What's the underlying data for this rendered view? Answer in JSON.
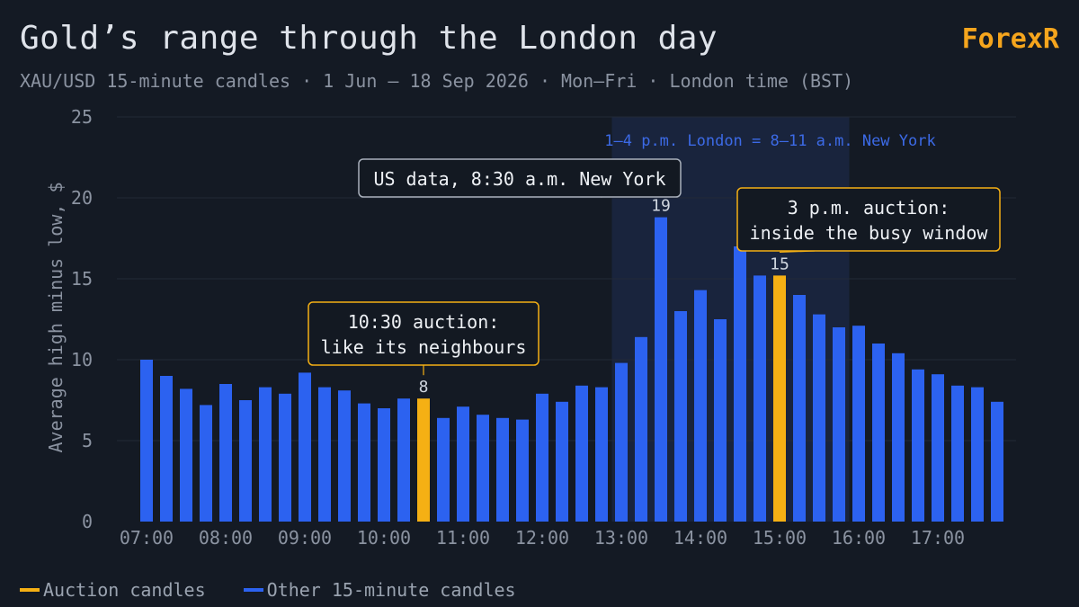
{
  "header": {
    "title": "Gold’s range through the London day",
    "subtitle": "XAU/USD 15-minute candles · 1 Jun – 18 Sep 2026 · Mon–Fri · London time (BST)",
    "brand": "ForexR"
  },
  "legend": {
    "auction_label": "Auction candles",
    "other_label": "Other 15-minute candles"
  },
  "colors": {
    "background": "#141a24",
    "bar": "#2c62f0",
    "auction": "#f5b014",
    "shade": "#19243d",
    "shade_text": "#3c6ae6",
    "grid": "#222a36",
    "axis_text": "#8b93a1"
  },
  "chart_data": {
    "type": "bar",
    "ylabel": "Average high minus low, $",
    "ylim": [
      0,
      25
    ],
    "yticks": [
      0,
      5,
      10,
      15,
      20,
      25
    ],
    "xtick_labels": [
      "07:00",
      "08:00",
      "09:00",
      "10:00",
      "11:00",
      "12:00",
      "13:00",
      "14:00",
      "15:00",
      "16:00",
      "17:00"
    ],
    "categories": [
      "07:00",
      "07:15",
      "07:30",
      "07:45",
      "08:00",
      "08:15",
      "08:30",
      "08:45",
      "09:00",
      "09:15",
      "09:30",
      "09:45",
      "10:00",
      "10:15",
      "10:30",
      "10:45",
      "11:00",
      "11:15",
      "11:30",
      "11:45",
      "12:00",
      "12:15",
      "12:30",
      "12:45",
      "13:00",
      "13:15",
      "13:30",
      "13:45",
      "14:00",
      "14:15",
      "14:30",
      "14:45",
      "15:00",
      "15:15",
      "15:30",
      "15:45",
      "16:00",
      "16:15",
      "16:30",
      "16:45",
      "17:00",
      "17:15",
      "17:30",
      "17:45"
    ],
    "values": [
      10.0,
      9.0,
      8.2,
      7.2,
      8.5,
      7.5,
      8.3,
      7.9,
      9.2,
      8.3,
      8.1,
      7.3,
      7.0,
      7.6,
      7.6,
      6.4,
      7.1,
      6.6,
      6.4,
      6.3,
      7.9,
      7.4,
      8.4,
      8.3,
      9.8,
      11.4,
      18.8,
      13.0,
      14.3,
      12.5,
      17.0,
      15.2,
      15.2,
      14.0,
      12.8,
      12.0,
      12.1,
      11.0,
      10.4,
      9.4,
      9.1,
      8.4,
      8.3,
      7.4
    ],
    "auction_categories": [
      "10:30",
      "15:00"
    ],
    "shaded_range": [
      "13:00",
      "15:45"
    ],
    "shaded_label": "1–4 p.m. London = 8–11 a.m. New York",
    "annotations": [
      {
        "category": "10:30",
        "value_label": "8",
        "text": [
          "10:30 auction:",
          "like its neighbours"
        ],
        "style": "auction"
      },
      {
        "category": "13:30",
        "value_label": "19",
        "text": [
          "US data, 8:30 a.m. New York"
        ],
        "style": "neutral"
      },
      {
        "category": "15:00",
        "value_label": "15",
        "text": [
          "3 p.m. auction:",
          "inside the busy window"
        ],
        "style": "auction"
      }
    ]
  }
}
